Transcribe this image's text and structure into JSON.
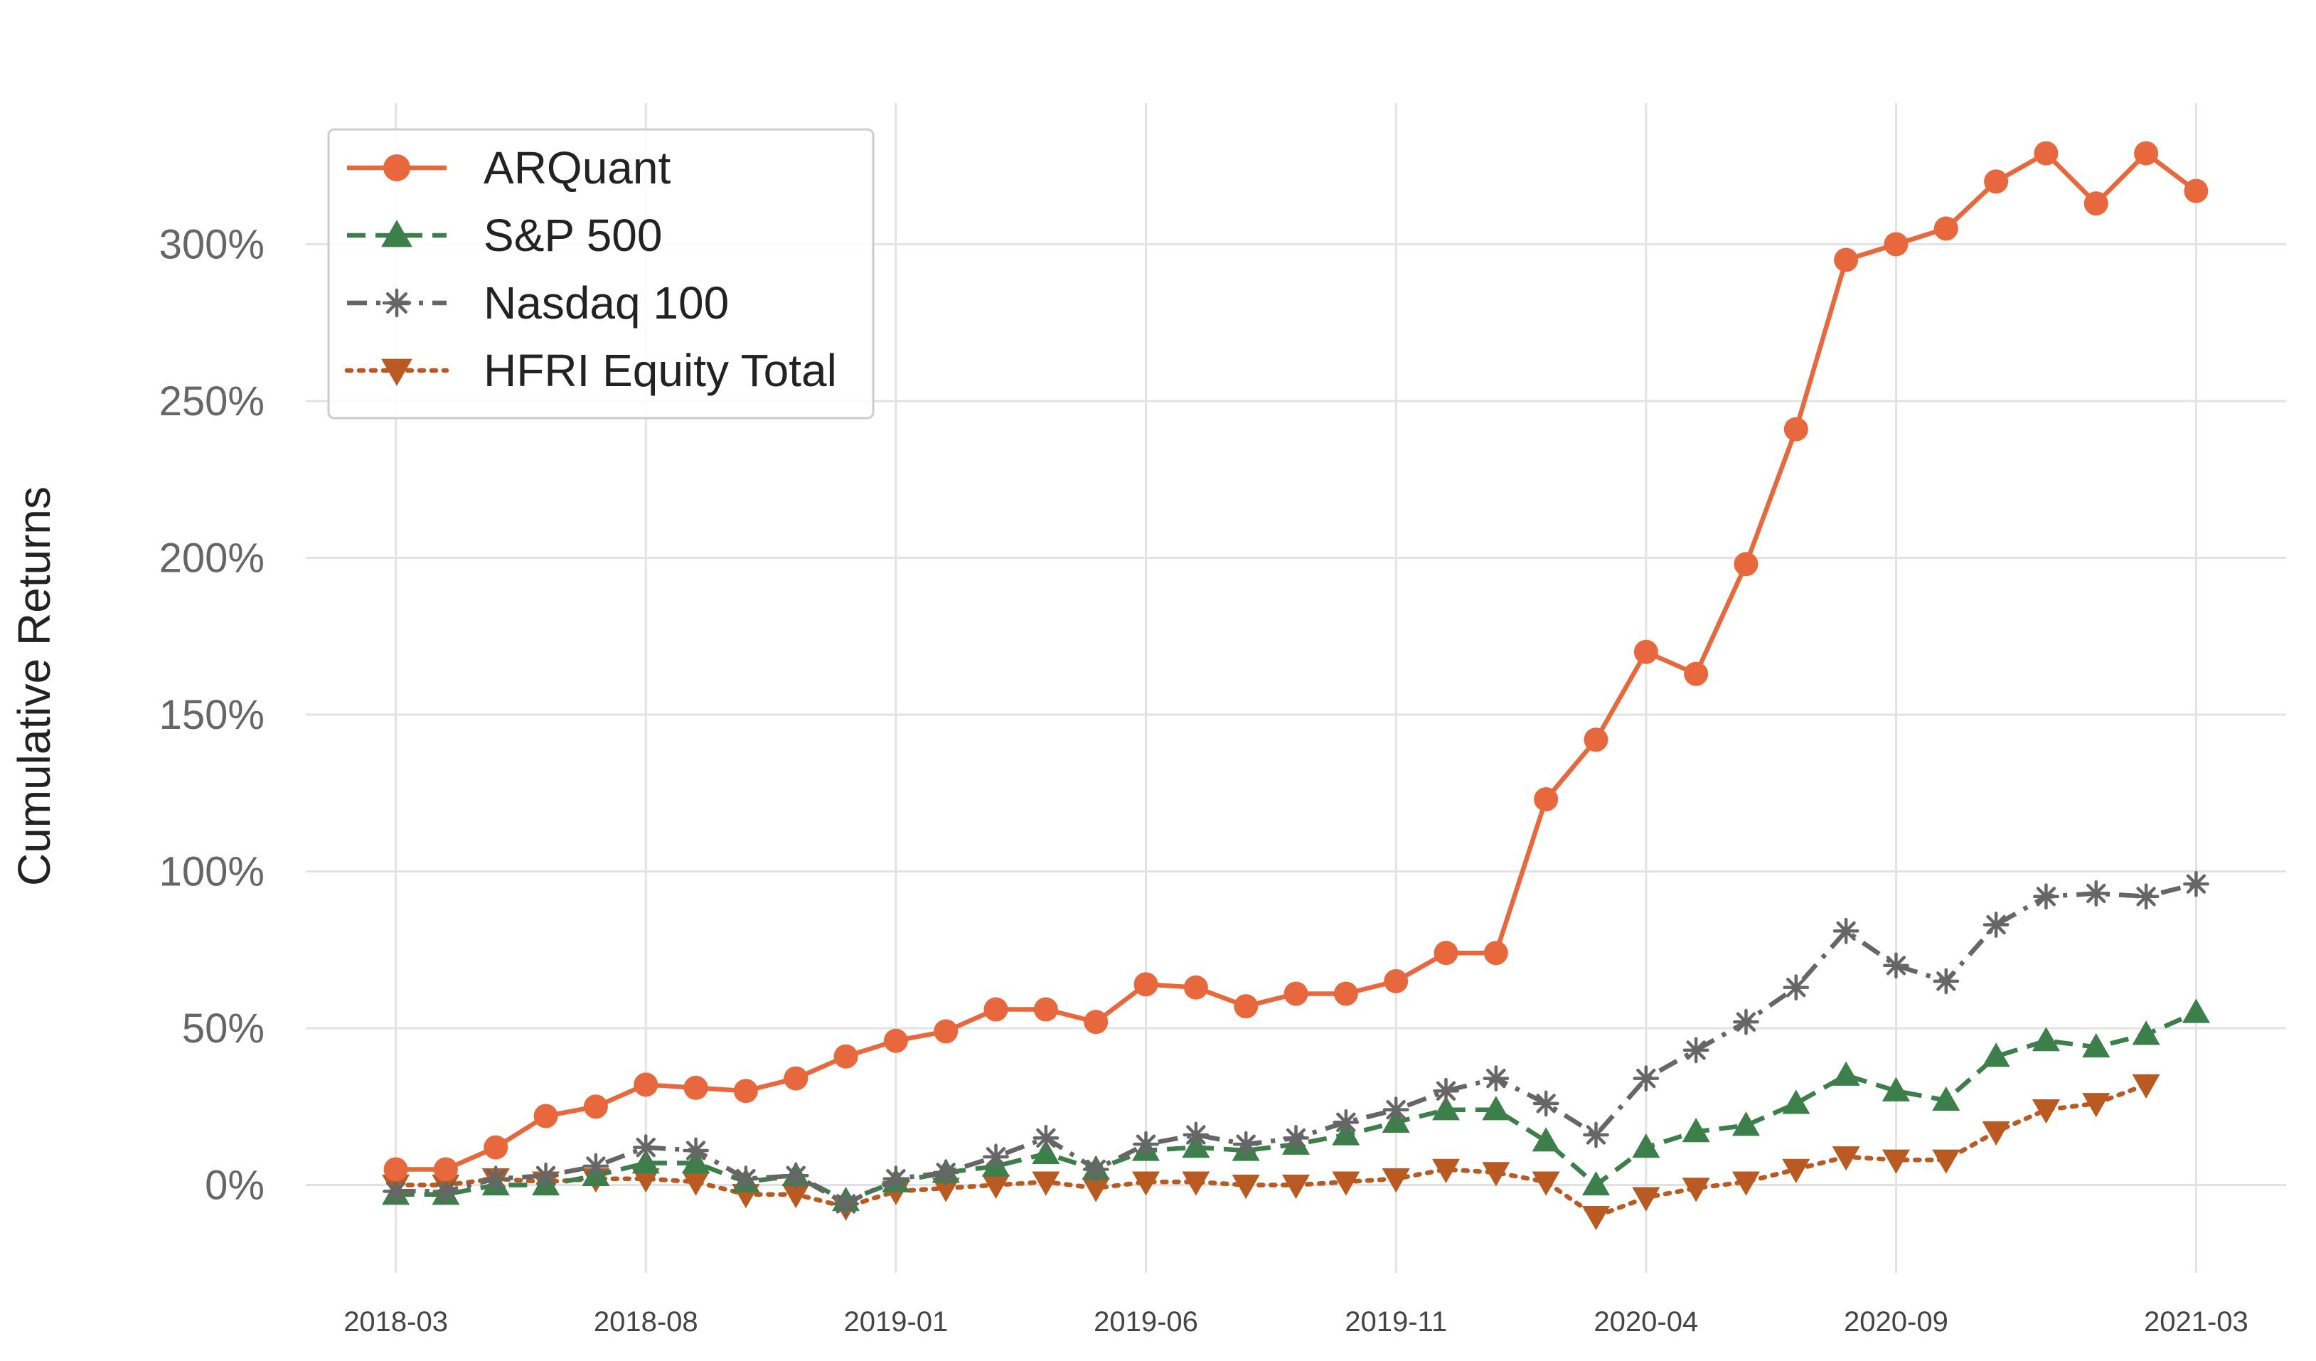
{
  "chart_data": {
    "type": "line",
    "ylabel": "Cumulative Returns",
    "xlabel": "",
    "grid": true,
    "legend_position": "top-left",
    "ylim": [
      -28,
      345
    ],
    "yticks": [
      0,
      50,
      100,
      150,
      200,
      250,
      300
    ],
    "ytick_labels": [
      "0%",
      "50%",
      "100%",
      "150%",
      "200%",
      "250%",
      "300%"
    ],
    "x_tick_labels": [
      "2018-03",
      "2018-08",
      "2019-01",
      "2019-06",
      "2019-11",
      "2020-04",
      "2020-09",
      "2021-03"
    ],
    "x_tick_index": [
      0,
      5,
      10,
      15,
      20,
      25,
      30,
      36
    ],
    "x_range": [
      -1.8,
      37.8
    ],
    "series": [
      {
        "name": "ARQuant",
        "color": "#e8683e",
        "dash": "solid",
        "marker": "circle",
        "x_index": [
          0,
          1,
          2,
          3,
          4,
          5,
          6,
          7,
          8,
          9,
          10,
          11,
          12,
          13,
          14,
          15,
          16,
          17,
          18,
          19,
          20,
          21,
          22,
          23,
          24,
          25,
          26,
          27,
          28,
          29,
          30,
          31,
          32,
          33,
          34,
          35,
          36
        ],
        "values": [
          5,
          5,
          12,
          22,
          25,
          32,
          31,
          30,
          34,
          41,
          46,
          49,
          56,
          56,
          52,
          64,
          63,
          57,
          61,
          61,
          65,
          74,
          74,
          123,
          142,
          170,
          163,
          198,
          241,
          295,
          300,
          305,
          320,
          329,
          313,
          329,
          317
        ]
      },
      {
        "name": "S&P 500",
        "color": "#3d7f4a",
        "dash": "dashed",
        "marker": "triangle-up",
        "x_index": [
          0,
          1,
          2,
          3,
          4,
          5,
          6,
          7,
          8,
          9,
          10,
          11,
          12,
          13,
          14,
          15,
          16,
          17,
          18,
          19,
          20,
          21,
          22,
          23,
          24,
          25,
          26,
          27,
          28,
          29,
          30,
          31,
          32,
          33,
          34,
          35,
          36
        ],
        "values": [
          -3,
          -3,
          0,
          0,
          3,
          7,
          7,
          1,
          3,
          -5,
          1,
          4,
          6,
          10,
          5,
          11,
          12,
          11,
          13,
          16,
          20,
          24,
          24,
          14,
          0,
          12,
          17,
          19,
          26,
          35,
          30,
          27,
          41,
          46,
          44,
          48,
          55
        ]
      },
      {
        "name": "Nasdaq 100",
        "color": "#666666",
        "dash": "dashdot",
        "marker": "asterisk",
        "x_index": [
          0,
          1,
          2,
          3,
          4,
          5,
          6,
          7,
          8,
          9,
          10,
          11,
          12,
          13,
          14,
          15,
          16,
          17,
          18,
          19,
          20,
          21,
          22,
          23,
          24,
          25,
          26,
          27,
          28,
          29,
          30,
          31,
          32,
          33,
          34,
          35,
          36
        ],
        "values": [
          -2,
          -2,
          2,
          3,
          6,
          12,
          11,
          2,
          3,
          -6,
          2,
          4,
          9,
          15,
          5,
          13,
          16,
          13,
          15,
          20,
          24,
          30,
          34,
          26,
          16,
          34,
          43,
          52,
          63,
          81,
          70,
          65,
          83,
          92,
          93,
          92,
          96
        ]
      },
      {
        "name": "HFRI Equity Total",
        "color": "#b85a22",
        "dash": "dotted",
        "marker": "triangle-down",
        "x_index": [
          0,
          1,
          2,
          3,
          4,
          5,
          6,
          7,
          8,
          9,
          10,
          11,
          12,
          13,
          14,
          15,
          16,
          17,
          18,
          19,
          20,
          21,
          22,
          23,
          24,
          25,
          26,
          27,
          28,
          29,
          30,
          31,
          32,
          33,
          34,
          35
        ],
        "values": [
          0,
          0,
          2,
          1,
          2,
          2,
          1,
          -3,
          -3,
          -7,
          -2,
          -1,
          0,
          1,
          -1,
          1,
          1,
          0,
          0,
          1,
          2,
          5,
          4,
          1,
          -10,
          -4,
          -1,
          1,
          5,
          9,
          8,
          8,
          17,
          24,
          26,
          32
        ]
      }
    ]
  }
}
